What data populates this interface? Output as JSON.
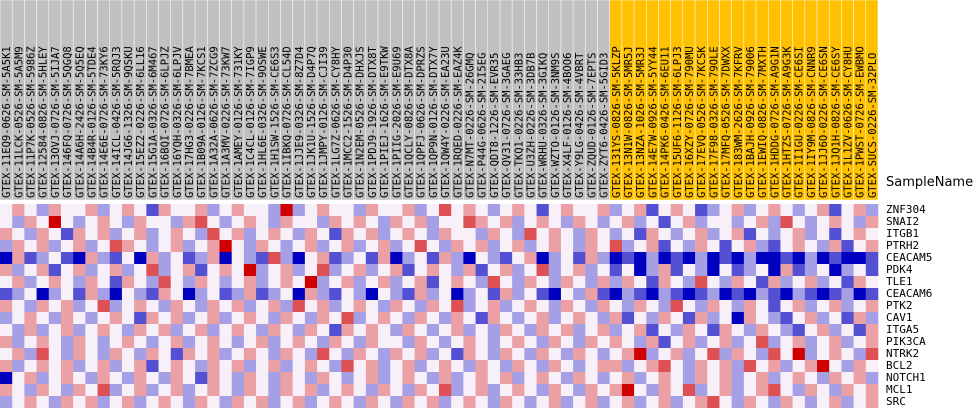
{
  "chart_data": {
    "type": "heatmap",
    "x_label": "SampleName",
    "columns": [
      "GTEX-11EQ9-0626-SM-5A5K1",
      "GTEX-11LCK-0526-SM-5A5M9",
      "GTEX-11P7K-0526-SM-5986Z",
      "GTEX-12584-0826-SM-5HLEY",
      "GTEX-13OVJ-0726-SM-5IJA7",
      "GTEX-146FQ-0726-SM-5QGQ8",
      "GTEX-14A6H-2426-SM-5Q5EQ",
      "GTEX-14B4R-0126-SM-5TDE4",
      "GTEX-14E6E-0726-SM-73KY6",
      "GTEX-14ICL-0426-SM-5RQJ3",
      "GTEX-14JG6-1326-SM-9QSKU",
      "GTEX-15EZ2-0226-SM-6LL16",
      "GTEX-15G1A-0326-SM-6M467",
      "GTEX-16BQI-0726-SM-6LPJZ",
      "GTEX-16YQH-0326-SM-6LPJV",
      "GTEX-17HG3-0226-SM-7BMEA",
      "GTEX-1B09A-0126-SM-7KCS1",
      "GTEX-1A32A-0626-SM-7ZCG9",
      "GTEX-1A3MV-0226-SM-73KW7",
      "GTEX-1AMEY-0126-SM-731KY",
      "GTEX-1C4CL-0126-SM-7IGP9",
      "GTEX-1HL6E-0326-SM-9OSWE",
      "GTEX-1H1SW-1526-SM-CE6S3",
      "GTEX-1IBKQ-0726-SM-CL54D",
      "GTEX-1JJE9-0326-SM-8Z7D4",
      "GTEX-1JK1U-1526-SM-D4P7Q",
      "GTEX-1JMPY-0126-SM-CJI39",
      "GTEX-1LG7Z-0626-SM-CY8HY",
      "GTEX-1MCC2-1526-SM-D4P30",
      "GTEX-1N2EM-0526-SM-DHXJS",
      "GTEX-1PDJ9-1926-SM-DTX8T",
      "GTEX-1PIEJ-1626-SM-E9TKW",
      "GTEX-1PIIG-2026-SM-E9U69",
      "GTEX-1QCLY-0826-SM-DTX8A",
      "GTEX-1QPFJ-0626-SM-DPRZS",
      "GTEX-1QP9N-0126-SM-DTX7Y",
      "GTEX-1QW4Y-0226-SM-EA23U",
      "GTEX-1RQED-0226-SM-EAZ4K",
      "GTEX-N7MT-0226-SM-26GMQ",
      "GTEX-P44G-0626-SM-2I5EG",
      "GTEX-QDT8-1226-SM-EVR35",
      "GTEX-QV31-0726-SM-3GAEG",
      "GTEX-TKQ1-0226-SM-33HB3",
      "GTEX-U3ZH-0226-SM-3DB7B",
      "GTEX-WRHU-0326-SM-3GIKQ",
      "GTEX-WZTO-0126-SM-3NM9S",
      "GTEX-X4LF-0126-SM-4BOO6",
      "GTEX-Y9LG-0426-SM-4VBRT",
      "GTEX-ZQUD-0126-SM-7EPTS",
      "GTEX-ZYT6-0426-SM-5GID3",
      "GTEX-131YS-0826-SM-5KLZP",
      "GTEX-13N1W-0826-SM-5MR5J",
      "GTEX-13NZA-1026-SM-5MR3J",
      "GTEX-14E7W-0926-SM-5YY44",
      "GTEX-14PK6-0426-SM-6EU11",
      "GTEX-15UF6-1126-SM-6LPJ3",
      "GTEX-16XZY-0726-SM-790MU",
      "GTEX-17EVQ-0526-SM-7KCSK",
      "GTEX-17F98-0326-SM-79OLE",
      "GTEX-17MFQ-0526-SM-7DWXX",
      "GTEX-183WM-2626-SM-7KFRV",
      "GTEX-1BAJH-0926-SM-79006",
      "GTEX-1EWIQ-0826-SM-7MXTH",
      "GTEX-1HDDG-0726-SM-A9G1N",
      "GTEX-1HTZS-0726-SM-A9G3K",
      "GTEX-1I1GU-0226-SM-CE6SI",
      "GTEX-1IY9M-0826-SM-CNNR9",
      "GTEX-1JJ6O-0226-SM-CE6SN",
      "GTEX-1JQ1H-0826-SM-CE6SY",
      "GTEX-1L1ZV-0626-SM-CY8HU",
      "GTEX-1PWST-0726-SM-EWBMO",
      "GTEX-SUCS-0226-SM-32PLO"
    ],
    "column_groups": [
      {
        "color": "#c0c0c0",
        "n": 50
      },
      {
        "color": "#ffc000",
        "n": 22
      }
    ],
    "rows": [
      "ZNF304",
      "SNAI2",
      "ITGB1",
      "PTRH2",
      "CEACAM5",
      "PDK4",
      "TLE1",
      "CEACAM6",
      "PTK2",
      "CAV1",
      "ITGA5",
      "PIK3CA",
      "NTRK2",
      "BCL2",
      "NOTCH1",
      "MCL1",
      "SRC"
    ],
    "colorlim": [
      -3,
      3
    ],
    "colors": [
      "#0000c0",
      "#f8f0f8",
      "#d00000"
    ],
    "values": [
      [
        0,
        1,
        0,
        -1,
        1,
        0,
        0,
        1,
        -1,
        0,
        1,
        0,
        -2,
        1,
        0,
        0,
        1,
        -1,
        0,
        1,
        0,
        0,
        -1,
        3,
        -1,
        0,
        1,
        0,
        0,
        -1,
        1,
        0,
        0,
        1,
        -1,
        0,
        2,
        0,
        1,
        0,
        -1,
        0,
        1,
        0,
        -2,
        0,
        1,
        0,
        0,
        1,
        -1,
        0,
        1,
        -2,
        0,
        1,
        0,
        -2,
        -1,
        0,
        1,
        -1,
        0,
        1,
        0,
        -1,
        0,
        1,
        -2,
        0,
        1,
        -1
      ],
      [
        0,
        -1,
        1,
        0,
        3,
        0,
        -1,
        0,
        1,
        0,
        -1,
        1,
        0,
        0,
        -1,
        1,
        2,
        0,
        -1,
        0,
        1,
        0,
        -1,
        1,
        0,
        0,
        -1,
        1,
        0,
        1,
        0,
        -1,
        1,
        0,
        1,
        -1,
        0,
        0,
        2,
        1,
        0,
        1,
        -1,
        0,
        1,
        0,
        -1,
        1,
        0,
        -1,
        0,
        1,
        -1,
        0,
        -2,
        0,
        1,
        -1,
        0,
        0,
        -1,
        0,
        1,
        -1,
        2,
        0,
        -1,
        0,
        1,
        0,
        -1,
        1
      ],
      [
        1,
        0,
        -1,
        1,
        0,
        -2,
        1,
        0,
        1,
        -1,
        0,
        1,
        -1,
        0,
        1,
        0,
        -1,
        2,
        0,
        1,
        -1,
        0,
        1,
        0,
        -1,
        1,
        0,
        -2,
        1,
        0,
        1,
        -1,
        0,
        1,
        0,
        -1,
        1,
        0,
        0,
        -1,
        1,
        0,
        -1,
        2,
        0,
        1,
        0,
        -1,
        1,
        0,
        -1,
        0,
        -2,
        1,
        0,
        -1,
        0,
        1,
        -1,
        0,
        1,
        -2,
        0,
        -1,
        0,
        1,
        -1,
        0,
        -2,
        0,
        1,
        0
      ],
      [
        -1,
        1,
        0,
        1,
        -1,
        0,
        1,
        -1,
        0,
        2,
        1,
        0,
        -1,
        0,
        1,
        -1,
        0,
        1,
        3,
        0,
        -1,
        1,
        0,
        -1,
        0,
        1,
        -1,
        0,
        1,
        -1,
        0,
        1,
        -1,
        0,
        2,
        0,
        -1,
        1,
        0,
        1,
        -1,
        0,
        1,
        -1,
        0,
        1,
        0,
        -1,
        1,
        0,
        2,
        -1,
        0,
        1,
        -2,
        0,
        -1,
        1,
        0,
        -2,
        0,
        1,
        -1,
        -2,
        0,
        1,
        0,
        -1,
        1,
        -2,
        0,
        1
      ],
      [
        -3,
        1,
        -2,
        -1,
        0,
        -2,
        -3,
        1,
        -1,
        -2,
        0,
        -3,
        1,
        -1,
        0,
        -2,
        -1,
        1,
        -3,
        0,
        -1,
        -2,
        2,
        -1,
        -3,
        0,
        1,
        -2,
        -1,
        0,
        -2,
        1,
        -3,
        -1,
        0,
        -2,
        1,
        -1,
        -3,
        0,
        -1,
        -2,
        0,
        1,
        -3,
        -1,
        0,
        -2,
        1,
        -1,
        -3,
        -2,
        -3,
        -1,
        -3,
        -2,
        -3,
        -1,
        -3,
        -2,
        -3,
        -1,
        -3,
        -3,
        -2,
        -3,
        -1,
        -3,
        -2,
        -3,
        -3,
        -2
      ],
      [
        1,
        -1,
        0,
        1,
        -2,
        0,
        1,
        -1,
        0,
        1,
        -1,
        0,
        2,
        -1,
        0,
        1,
        -2,
        0,
        1,
        0,
        3,
        -1,
        0,
        1,
        -1,
        0,
        2,
        -1,
        0,
        1,
        -1,
        0,
        1,
        -2,
        0,
        1,
        0,
        -1,
        1,
        -2,
        0,
        1,
        -1,
        0,
        2,
        -1,
        0,
        1,
        -1,
        0,
        -2,
        0,
        -3,
        -1,
        1,
        -2,
        0,
        -1,
        -3,
        0,
        -2,
        -1,
        0,
        -3,
        1,
        -2,
        -1,
        0,
        -3,
        -1,
        0,
        -2
      ],
      [
        0,
        1,
        -1,
        0,
        1,
        0,
        -1,
        1,
        0,
        -2,
        1,
        0,
        -1,
        2,
        0,
        -1,
        1,
        0,
        -1,
        0,
        1,
        -1,
        0,
        1,
        0,
        3,
        -1,
        0,
        1,
        -1,
        0,
        1,
        -1,
        0,
        1,
        -2,
        0,
        1,
        0,
        -1,
        2,
        0,
        -1,
        1,
        0,
        -1,
        1,
        0,
        -1,
        1,
        -1,
        1,
        0,
        -2,
        1,
        0,
        -1,
        2,
        0,
        -1,
        1,
        0,
        -2,
        1,
        -1,
        0,
        1,
        -1,
        0,
        -2,
        1,
        0
      ],
      [
        -2,
        -1,
        0,
        -3,
        -1,
        0,
        -2,
        1,
        -1,
        -3,
        0,
        -1,
        -2,
        1,
        0,
        -3,
        -1,
        0,
        -2,
        -1,
        1,
        -2,
        -1,
        0,
        -3,
        1,
        -1,
        -2,
        0,
        -1,
        -3,
        0,
        -1,
        -2,
        1,
        -1,
        0,
        -3,
        -1,
        0,
        -2,
        1,
        -1,
        0,
        -2,
        -3,
        0,
        -1,
        1,
        -2,
        -3,
        -1,
        -2,
        -3,
        -1,
        -2,
        -3,
        -2,
        -1,
        -3,
        -2,
        -3,
        -1,
        -2,
        -3,
        -1,
        -2,
        -3,
        -2,
        -1,
        -3,
        -2
      ],
      [
        1,
        0,
        -1,
        1,
        0,
        1,
        -1,
        0,
        2,
        -1,
        0,
        1,
        0,
        -1,
        1,
        0,
        -1,
        1,
        0,
        1,
        -1,
        0,
        1,
        -1,
        2,
        0,
        1,
        -1,
        0,
        1,
        0,
        -1,
        1,
        0,
        -1,
        1,
        0,
        2,
        -1,
        0,
        1,
        -1,
        0,
        1,
        0,
        -1,
        1,
        0,
        -1,
        1,
        0,
        -1,
        1,
        0,
        -1,
        2,
        0,
        -1,
        1,
        0,
        -1,
        1,
        0,
        -2,
        0,
        1,
        -1,
        0,
        1,
        -1,
        0,
        1
      ],
      [
        -1,
        0,
        1,
        0,
        -1,
        1,
        0,
        -1,
        0,
        1,
        0,
        -2,
        1,
        0,
        1,
        -1,
        0,
        1,
        -1,
        0,
        1,
        0,
        -1,
        1,
        0,
        -1,
        1,
        0,
        2,
        -1,
        0,
        1,
        0,
        -1,
        1,
        0,
        -1,
        1,
        0,
        -2,
        1,
        0,
        -1,
        0,
        1,
        -1,
        0,
        1,
        0,
        -1,
        1,
        -2,
        0,
        -1,
        1,
        0,
        -2,
        1,
        -1,
        0,
        -3,
        1,
        0,
        -1,
        -2,
        0,
        1,
        -1,
        0,
        -2,
        1,
        -1
      ],
      [
        0,
        -1,
        1,
        -1,
        0,
        1,
        -1,
        0,
        1,
        0,
        -1,
        1,
        0,
        1,
        -1,
        0,
        1,
        -1,
        0,
        1,
        0,
        -1,
        1,
        0,
        -1,
        1,
        0,
        -2,
        1,
        0,
        1,
        0,
        -1,
        1,
        0,
        -1,
        0,
        1,
        -1,
        0,
        -1,
        1,
        0,
        -1,
        1,
        0,
        1,
        -1,
        0,
        1,
        -1,
        0,
        1,
        -2,
        0,
        -1,
        1,
        0,
        -2,
        1,
        0,
        -1,
        1,
        0,
        -1,
        -2,
        0,
        1,
        -1,
        0,
        -2,
        1
      ],
      [
        1,
        -1,
        0,
        1,
        0,
        -1,
        1,
        0,
        -1,
        0,
        1,
        0,
        -1,
        0,
        1,
        -1,
        0,
        1,
        0,
        -1,
        0,
        1,
        -1,
        0,
        1,
        0,
        -1,
        1,
        0,
        -1,
        1,
        0,
        0,
        -1,
        1,
        0,
        -1,
        0,
        1,
        0,
        -1,
        0,
        1,
        0,
        -1,
        1,
        0,
        -1,
        1,
        0,
        1,
        0,
        -1,
        1,
        -2,
        0,
        1,
        -1,
        0,
        1,
        -1,
        0,
        2,
        -1,
        0,
        1,
        -1,
        0,
        1,
        -1,
        0,
        1
      ],
      [
        0,
        1,
        -1,
        2,
        0,
        -1,
        1,
        0,
        -1,
        1,
        0,
        -1,
        1,
        0,
        -2,
        1,
        0,
        1,
        -1,
        0,
        1,
        0,
        -1,
        1,
        0,
        -1,
        2,
        0,
        -1,
        1,
        0,
        -1,
        1,
        0,
        1,
        -1,
        0,
        -2,
        1,
        0,
        -1,
        1,
        0,
        -1,
        1,
        0,
        -1,
        1,
        0,
        -1,
        0,
        1,
        3,
        -1,
        0,
        1,
        -1,
        0,
        2,
        -1,
        1,
        0,
        -1,
        2,
        0,
        3,
        -1,
        0,
        1,
        0,
        -1,
        2
      ],
      [
        1,
        -1,
        0,
        1,
        0,
        1,
        -1,
        0,
        1,
        -1,
        0,
        1,
        -2,
        0,
        1,
        0,
        -1,
        1,
        0,
        1,
        -1,
        0,
        1,
        -1,
        0,
        1,
        0,
        -1,
        2,
        0,
        1,
        -1,
        0,
        1,
        -1,
        0,
        1,
        0,
        -1,
        1,
        0,
        -1,
        1,
        0,
        -1,
        1,
        0,
        -1,
        0,
        1,
        1,
        -1,
        0,
        1,
        2,
        0,
        -1,
        1,
        0,
        1,
        -1,
        2,
        0,
        1,
        -1,
        0,
        1,
        3,
        0,
        -1,
        1,
        0
      ],
      [
        -3,
        0,
        1,
        -1,
        0,
        1,
        0,
        -1,
        1,
        0,
        -1,
        1,
        0,
        -1,
        1,
        0,
        -2,
        1,
        0,
        -1,
        1,
        0,
        -1,
        1,
        0,
        -1,
        1,
        0,
        -1,
        0,
        1,
        -1,
        0,
        1,
        0,
        -1,
        1,
        -1,
        0,
        1,
        0,
        1,
        -1,
        0,
        1,
        0,
        -1,
        1,
        0,
        -1,
        0,
        1,
        -1,
        0,
        1,
        0,
        -1,
        1,
        0,
        1,
        -1,
        0,
        1,
        -1,
        0,
        1,
        0,
        -1,
        1,
        0,
        1,
        -1
      ],
      [
        1,
        0,
        -1,
        1,
        0,
        -1,
        1,
        0,
        2,
        -1,
        0,
        1,
        -1,
        0,
        1,
        -1,
        0,
        1,
        0,
        -1,
        1,
        0,
        -1,
        1,
        0,
        1,
        -1,
        0,
        1,
        0,
        -1,
        1,
        0,
        -1,
        1,
        0,
        2,
        -1,
        0,
        1,
        -1,
        0,
        1,
        0,
        -1,
        1,
        0,
        -1,
        1,
        0,
        1,
        3,
        0,
        -1,
        1,
        0,
        2,
        -1,
        0,
        1,
        -1,
        0,
        1,
        2,
        0,
        -1,
        1,
        0,
        -1,
        1,
        0,
        1
      ],
      [
        -1,
        0,
        1,
        0,
        -1,
        1,
        0,
        1,
        -1,
        0,
        1,
        -1,
        0,
        1,
        0,
        -1,
        1,
        0,
        -1,
        1,
        0,
        1,
        -1,
        0,
        1,
        -1,
        0,
        1,
        0,
        -1,
        1,
        0,
        -1,
        1,
        0,
        1,
        -1,
        0,
        1,
        0,
        -1,
        1,
        0,
        -1,
        0,
        1,
        -1,
        0,
        1,
        -1,
        0,
        1,
        -1,
        0,
        1,
        -1,
        0,
        1,
        2,
        0,
        -1,
        1,
        0,
        -1,
        1,
        0,
        -1,
        0,
        1,
        -1,
        0,
        1
      ]
    ]
  }
}
